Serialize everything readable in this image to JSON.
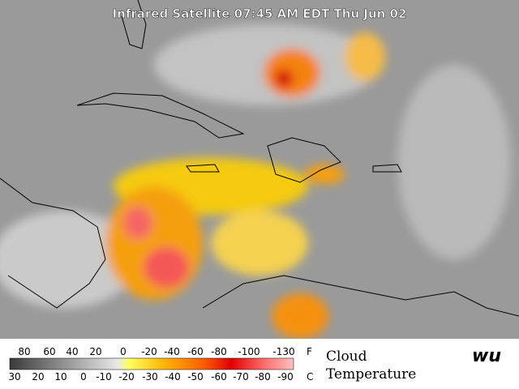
{
  "header": {
    "title": "Infrared Satellite 07:45 AM EDT Thu Jun 02"
  },
  "legend": {
    "fahrenheit_labels": [
      "80",
      "60",
      "40",
      "20",
      "0",
      "-20",
      "-40",
      "-60",
      "-80",
      "-100",
      "-130"
    ],
    "fahrenheit_unit": "F",
    "celsius_labels": [
      "30",
      "20",
      "10",
      "0",
      "-10",
      "-20",
      "-30",
      "-40",
      "-50",
      "-60",
      "-70",
      "-80",
      "-90"
    ],
    "celsius_unit": "C",
    "caption_line1": "Cloud",
    "caption_line2": "Temperature"
  },
  "logo": {
    "text": "wu"
  }
}
